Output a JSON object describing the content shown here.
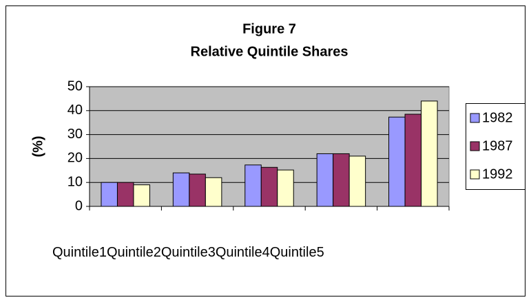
{
  "chart_data": {
    "type": "bar",
    "title": "Figure 7",
    "subtitle": "Relative Quintile Shares",
    "y_label": "(%)",
    "categories": [
      "Quintile1",
      "Quintile2",
      "Quintile3",
      "Quintile4",
      "Quintile5"
    ],
    "series": [
      {
        "name": "1982",
        "color": "#9999ff",
        "values": [
          10,
          14,
          17.3,
          22,
          37.3
        ]
      },
      {
        "name": "1987",
        "color": "#993366",
        "values": [
          10,
          13.5,
          16.3,
          22,
          38.5
        ]
      },
      {
        "name": "1992",
        "color": "#ffffcc",
        "values": [
          9,
          12,
          15.2,
          21,
          44
        ]
      }
    ],
    "ylim": [
      0,
      50
    ],
    "yticks": [
      0,
      10,
      20,
      30,
      40,
      50
    ],
    "grid": true,
    "legend": "right",
    "plot_background": "#c0c0c0"
  }
}
